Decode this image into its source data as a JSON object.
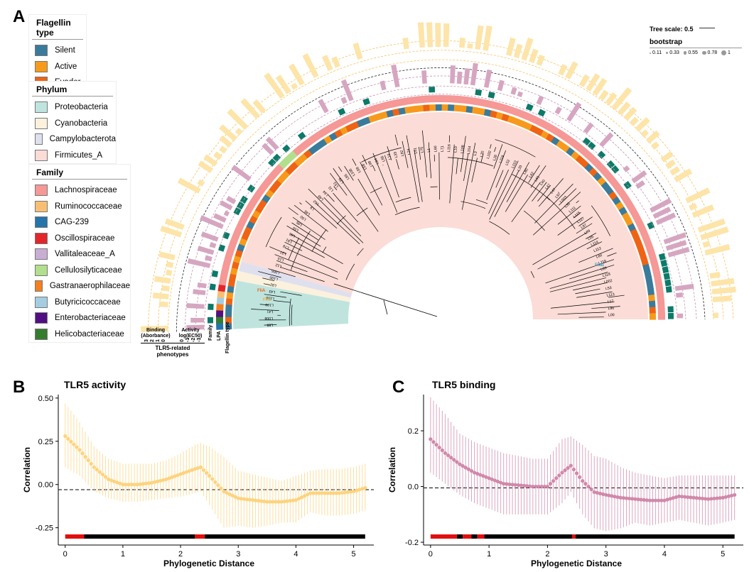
{
  "panel_a": {
    "letter": "A",
    "legends": [
      {
        "title": "Flagellin type",
        "items": [
          {
            "label": "Silent",
            "color": "#3a7b9b"
          },
          {
            "label": "Active",
            "color": "#f79a1c"
          },
          {
            "label": "Evader",
            "color": "#ef6414"
          }
        ]
      },
      {
        "title": "Phylum",
        "items": [
          {
            "label": "Proteobacteria",
            "color": "#bfe4de"
          },
          {
            "label": "Cyanobacteria",
            "color": "#fcf1dd"
          },
          {
            "label": "Campylobacterota",
            "color": "#dfe0ee"
          },
          {
            "label": "Firmicutes_A",
            "color": "#fbdcd6"
          }
        ]
      },
      {
        "title": "Family",
        "items": [
          {
            "label": "Lachnospiraceae",
            "color": "#f59896"
          },
          {
            "label": "Ruminococcaceae",
            "color": "#f8bf74"
          },
          {
            "label": "CAG-239",
            "color": "#2574ac"
          },
          {
            "label": "Oscillospiraceae",
            "color": "#e2262a"
          },
          {
            "label": "Vallitaleaceae_A",
            "color": "#c9aed3"
          },
          {
            "label": "Cellulosilyticaceae",
            "color": "#b2df8c"
          },
          {
            "label": "Gastranaerophilaceae",
            "color": "#f57f1e"
          },
          {
            "label": "Butyricicoccaceae",
            "color": "#a5cde2"
          },
          {
            "label": "Enterobacteriaceae",
            "color": "#520f83"
          },
          {
            "label": "Helicobacteriaceae",
            "color": "#347d2d"
          }
        ]
      }
    ],
    "tree_scale": "Tree scale: 0.5",
    "bootstrap": {
      "title": "bootstrap",
      "values": [
        "0.11",
        "0.33",
        "0.55",
        "0.78",
        "1"
      ]
    },
    "track_labels": {
      "binding": "Binding\n(Aborbance)",
      "activity": "Activity\nlog(EC50)",
      "phenotypes": "TLR5-related\nphenotypes",
      "family": "Family",
      "lpa": "LPA",
      "flagellin": "Flagellin type"
    },
    "binding_ticks": [
      "3",
      "2",
      "1",
      "0"
    ],
    "activity_ticks": [
      "0",
      "-1",
      "-2",
      "-3"
    ],
    "highlighted_leaves": [
      "FliA",
      "FliC",
      "FlaB"
    ],
    "leaf_labels": [
      "L88",
      "L008",
      "L41",
      "L109",
      "L106",
      "L43",
      "L92",
      "L100",
      "L005",
      "L12",
      "L15",
      "L27",
      "L78",
      "L91",
      "L66",
      "L56",
      "L85",
      "L50",
      "L46",
      "L9",
      "L62",
      "L48",
      "L64",
      "L11",
      "L51",
      "L29",
      "L65",
      "L105",
      "L58",
      "L59",
      "L98",
      "L84",
      "L55",
      "L14",
      "L33",
      "L82",
      "L24",
      "L01",
      "L75",
      "L1",
      "L60",
      "L71",
      "L116",
      "L10",
      "L108",
      "L104",
      "L3",
      "L70",
      "L102",
      "L26",
      "L119",
      "L52",
      "L110",
      "L20",
      "L80",
      "L42",
      "L61",
      "L40",
      "L47",
      "L47",
      "L97",
      "L003",
      "L35",
      "L111",
      "L115",
      "L117",
      "L87",
      "L89",
      "L95",
      "L114",
      "L112",
      "L60",
      "L116",
      "L89",
      "L118",
      "L002",
      "L53",
      "L113",
      "L17",
      "L86",
      "L00"
    ]
  },
  "panel_b": {
    "letter": "B",
    "title": "TLR5 activity",
    "xlabel": "Phylogenetic Distance",
    "ylabel": "Correlation"
  },
  "panel_c": {
    "letter": "C",
    "title": "TLR5 binding",
    "xlabel": "Phylogenetic Distance",
    "ylabel": "Correlation"
  },
  "chart_data": [
    {
      "type": "line",
      "title": "TLR5 activity",
      "xlabel": "Phylogenetic Distance",
      "ylabel": "Correlation",
      "xlim": [
        -0.12,
        5.35
      ],
      "ylim": [
        -0.35,
        0.52
      ],
      "xticks": [
        0,
        1,
        2,
        3,
        4,
        5
      ],
      "yticks": [
        -0.25,
        0.0,
        0.25,
        0.5
      ],
      "ytick_labels": [
        "-0.25",
        "0.00",
        "0.25",
        "0.50"
      ],
      "reference_line": -0.03,
      "color": "#fdd37e",
      "x": [
        0,
        0.25,
        0.5,
        0.75,
        1.0,
        1.25,
        1.5,
        1.75,
        2.0,
        2.25,
        2.35,
        2.5,
        2.75,
        3.0,
        3.25,
        3.5,
        3.75,
        4.0,
        4.25,
        4.5,
        4.75,
        5.0,
        5.2
      ],
      "y": [
        0.28,
        0.2,
        0.1,
        0.03,
        0.0,
        0.0,
        0.01,
        0.03,
        0.06,
        0.09,
        0.1,
        0.05,
        -0.04,
        -0.08,
        -0.09,
        -0.1,
        -0.1,
        -0.09,
        -0.05,
        -0.05,
        -0.05,
        -0.04,
        -0.02
      ],
      "lower": [
        0.1,
        0.05,
        -0.04,
        -0.08,
        -0.1,
        -0.1,
        -0.09,
        -0.08,
        -0.07,
        -0.05,
        -0.04,
        -0.12,
        -0.25,
        -0.24,
        -0.25,
        -0.24,
        -0.22,
        -0.22,
        -0.16,
        -0.18,
        -0.18,
        -0.17,
        -0.15
      ],
      "upper": [
        0.47,
        0.36,
        0.22,
        0.15,
        0.12,
        0.12,
        0.12,
        0.14,
        0.18,
        0.23,
        0.24,
        0.22,
        0.16,
        0.08,
        0.06,
        0.04,
        0.02,
        0.05,
        0.08,
        0.09,
        0.09,
        0.1,
        0.12
      ],
      "significance_bar": [
        {
          "from": 0.0,
          "to": 0.33,
          "significant": true
        },
        {
          "from": 0.33,
          "to": 2.25,
          "significant": false
        },
        {
          "from": 2.25,
          "to": 2.42,
          "significant": true
        },
        {
          "from": 2.42,
          "to": 5.2,
          "significant": false
        }
      ]
    },
    {
      "type": "line",
      "title": "TLR5 binding",
      "xlabel": "Phylogenetic Distance",
      "ylabel": "Correlation",
      "xlim": [
        -0.12,
        5.35
      ],
      "ylim": [
        -0.21,
        0.33
      ],
      "xticks": [
        0,
        1,
        2,
        3,
        4,
        5
      ],
      "yticks": [
        -0.2,
        0.0,
        0.2
      ],
      "ytick_labels": [
        "-0.2",
        "0.0",
        "0.2"
      ],
      "reference_line": -0.005,
      "color": "#d088aa",
      "x": [
        0,
        0.25,
        0.5,
        0.75,
        1.0,
        1.25,
        1.5,
        1.75,
        2.0,
        2.25,
        2.4,
        2.6,
        2.8,
        3.0,
        3.25,
        3.5,
        3.75,
        4.0,
        4.25,
        4.5,
        4.75,
        5.0,
        5.2
      ],
      "y": [
        0.17,
        0.12,
        0.08,
        0.05,
        0.03,
        0.01,
        0.005,
        0.0,
        0.0,
        0.05,
        0.075,
        0.02,
        -0.02,
        -0.03,
        -0.04,
        -0.045,
        -0.05,
        -0.05,
        -0.035,
        -0.04,
        -0.045,
        -0.04,
        -0.03
      ],
      "lower": [
        0.05,
        0.01,
        -0.03,
        -0.06,
        -0.08,
        -0.1,
        -0.1,
        -0.1,
        -0.1,
        -0.06,
        -0.02,
        -0.1,
        -0.15,
        -0.16,
        -0.15,
        -0.13,
        -0.14,
        -0.13,
        -0.12,
        -0.13,
        -0.14,
        -0.13,
        -0.12
      ],
      "upper": [
        0.32,
        0.26,
        0.19,
        0.16,
        0.14,
        0.12,
        0.11,
        0.1,
        0.1,
        0.17,
        0.18,
        0.15,
        0.11,
        0.1,
        0.07,
        0.05,
        0.04,
        0.03,
        0.04,
        0.04,
        0.04,
        0.04,
        0.04
      ],
      "significance_bar": [
        {
          "from": 0.0,
          "to": 0.45,
          "significant": true
        },
        {
          "from": 0.45,
          "to": 0.55,
          "significant": false
        },
        {
          "from": 0.55,
          "to": 0.7,
          "significant": true
        },
        {
          "from": 0.7,
          "to": 0.8,
          "significant": false
        },
        {
          "from": 0.8,
          "to": 0.92,
          "significant": true
        },
        {
          "from": 0.92,
          "to": 2.42,
          "significant": false
        },
        {
          "from": 2.42,
          "to": 2.48,
          "significant": true
        },
        {
          "from": 2.48,
          "to": 5.2,
          "significant": false
        }
      ]
    }
  ]
}
